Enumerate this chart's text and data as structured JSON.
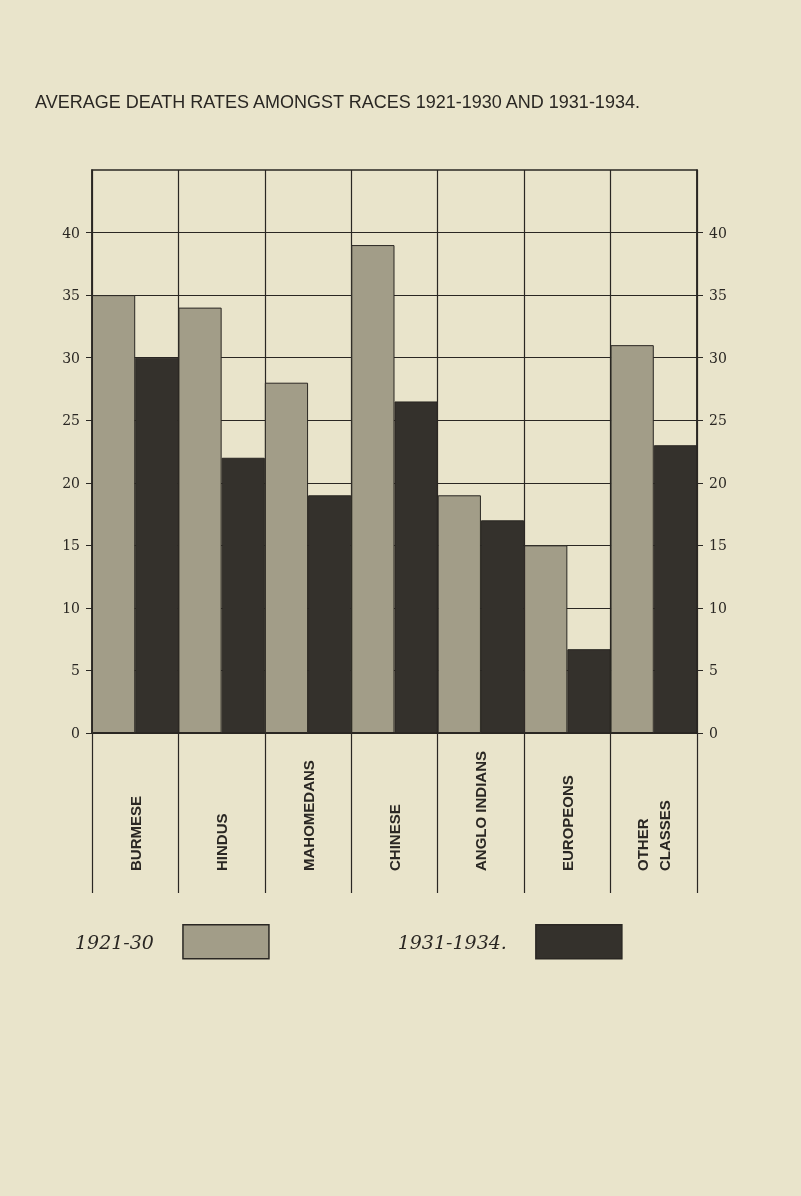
{
  "chart_data": {
    "type": "bar",
    "title": "AVERAGE DEATH RATES AMONGST RACES 1921-1930 AND 1931-1934.",
    "categories": [
      "BURMESE",
      "HINDUS",
      "MAHOMEDANS",
      "CHINESE",
      "ANGLO INDIANS",
      "EUROPEONS",
      "OTHER CLASSES"
    ],
    "series": [
      {
        "name": "1921-30",
        "color": "#a29d88",
        "values": [
          35,
          34,
          28,
          39,
          19,
          15,
          31
        ]
      },
      {
        "name": "1931-1934.",
        "color": "#34312c",
        "values": [
          30,
          22,
          19,
          26.5,
          17,
          6.7,
          23
        ]
      }
    ],
    "ylim": [
      0,
      45
    ],
    "yticks": [
      0,
      5,
      10,
      15,
      20,
      25,
      30,
      35,
      40
    ],
    "y2lim": [
      0,
      45
    ],
    "y2ticks": [
      0,
      5,
      10,
      15,
      20,
      25,
      30,
      35,
      40
    ],
    "grid": true,
    "legend": "bottom"
  }
}
